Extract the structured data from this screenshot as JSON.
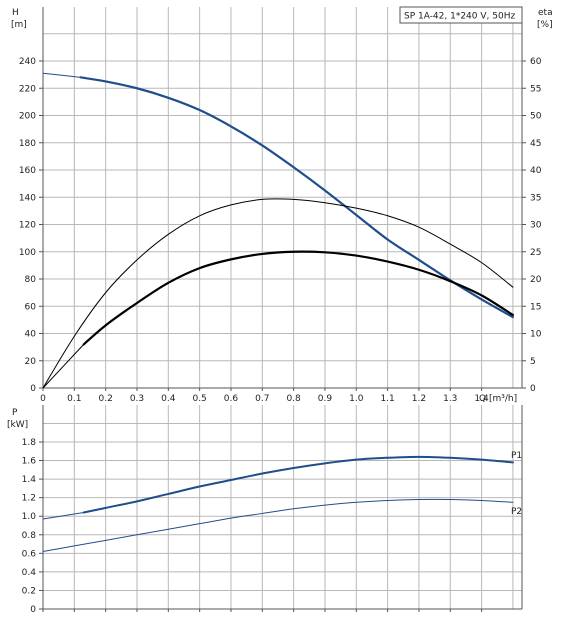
{
  "colors": {
    "grid": "#b8b8b8",
    "axis": "#555555",
    "head_curve": "#1f4e8c",
    "power_curve": "#1f4e8c",
    "eta_curve": "#000000",
    "text": "#222222"
  },
  "chart_data": [
    {
      "id": "head-efficiency",
      "type": "line",
      "title": "SP 1A-42, 1*240 V, 50Hz",
      "xlabel": "Q [m³/h]",
      "ylabel_left_lines": [
        "H",
        "[m]"
      ],
      "ylabel_right_lines": [
        "eta",
        "[%]"
      ],
      "xlim": [
        0,
        1.55
      ],
      "ylim_left": [
        0,
        240
      ],
      "ylim_right": [
        0,
        60
      ],
      "xticks": [
        0,
        0.1,
        0.2,
        0.3,
        0.4,
        0.5,
        0.6,
        0.7,
        0.8,
        0.9,
        1.0,
        1.1,
        1.2,
        1.3,
        1.4
      ],
      "xtick_labels": [
        "0",
        "0.1",
        "0.2",
        "0.3",
        "0.4",
        "0.5",
        "0.6",
        "0.7",
        "0.8",
        "0.9",
        "1.0",
        "1.1",
        "1.2",
        "1.3",
        "1.4"
      ],
      "yticks_left": [
        0,
        20,
        40,
        60,
        80,
        100,
        120,
        140,
        160,
        180,
        200,
        220,
        240
      ],
      "yticks_right": [
        0,
        5,
        10,
        15,
        20,
        25,
        30,
        35,
        40,
        45,
        50,
        55,
        60
      ],
      "grid": true,
      "series": [
        {
          "key": "head",
          "axis": "left",
          "color": "#1f4e8c",
          "x": [
            0,
            0.12,
            0.2,
            0.3,
            0.4,
            0.5,
            0.6,
            0.7,
            0.8,
            0.9,
            1.0,
            1.1,
            1.2,
            1.3,
            1.4,
            1.5
          ],
          "y": [
            231,
            228,
            225,
            220,
            213,
            204,
            192,
            178,
            162,
            145,
            127,
            109,
            94,
            79,
            65,
            52
          ],
          "dashed_until": 0.12,
          "width": 2.2
        },
        {
          "key": "eta-thin",
          "axis": "right",
          "color": "#000000",
          "x": [
            0,
            0.1,
            0.2,
            0.3,
            0.4,
            0.5,
            0.6,
            0.7,
            0.8,
            0.9,
            1.0,
            1.1,
            1.2,
            1.3,
            1.4,
            1.5
          ],
          "y": [
            0,
            9.5,
            17.5,
            23.5,
            28.2,
            31.6,
            33.6,
            34.6,
            34.6,
            34.0,
            33.0,
            31.6,
            29.5,
            26.4,
            23.0,
            18.5
          ],
          "width": 1
        },
        {
          "key": "eta-thick",
          "axis": "right",
          "color": "#000000",
          "x": [
            0,
            0.13,
            0.2,
            0.3,
            0.4,
            0.5,
            0.6,
            0.7,
            0.8,
            0.9,
            1.0,
            1.1,
            1.2,
            1.3,
            1.4,
            1.5
          ],
          "y": [
            0,
            8,
            11.5,
            15.6,
            19.3,
            22.0,
            23.6,
            24.6,
            25.0,
            24.9,
            24.3,
            23.2,
            21.7,
            19.6,
            17.0,
            13.4
          ],
          "dashed_until": 0.13,
          "width": 2.2
        }
      ]
    },
    {
      "id": "power",
      "type": "line",
      "ylabel_lines": [
        "P",
        "[kW]"
      ],
      "xlim": [
        0,
        1.55
      ],
      "ylim": [
        0,
        2.0
      ],
      "yticks": [
        0,
        0.2,
        0.4,
        0.6,
        0.8,
        1.0,
        1.2,
        1.4,
        1.6,
        1.8
      ],
      "ytick_labels": [
        "0",
        "0.2",
        "0.4",
        "0.6",
        "0.8",
        "1.0",
        "1.2",
        "1.4",
        "1.6",
        "1.8"
      ],
      "xticks": [
        0,
        0.1,
        0.2,
        0.3,
        0.4,
        0.5,
        0.6,
        0.7,
        0.8,
        0.9,
        1.0,
        1.1,
        1.2,
        1.3,
        1.4
      ],
      "grid": true,
      "series": [
        {
          "name": "P1",
          "color": "#1f4e8c",
          "x": [
            0,
            0.13,
            0.2,
            0.3,
            0.4,
            0.5,
            0.6,
            0.7,
            0.8,
            0.9,
            1.0,
            1.1,
            1.2,
            1.3,
            1.4,
            1.5
          ],
          "y": [
            0.97,
            1.04,
            1.09,
            1.16,
            1.24,
            1.32,
            1.39,
            1.46,
            1.52,
            1.57,
            1.61,
            1.63,
            1.64,
            1.63,
            1.61,
            1.58
          ],
          "dashed_until": 0.13,
          "width": 2
        },
        {
          "name": "P2",
          "color": "#1f4e8c",
          "x": [
            0,
            0.1,
            0.2,
            0.3,
            0.4,
            0.5,
            0.6,
            0.7,
            0.8,
            0.9,
            1.0,
            1.1,
            1.2,
            1.3,
            1.4,
            1.5
          ],
          "y": [
            0.62,
            0.68,
            0.74,
            0.8,
            0.86,
            0.92,
            0.98,
            1.03,
            1.08,
            1.12,
            1.15,
            1.17,
            1.18,
            1.18,
            1.17,
            1.15
          ],
          "width": 1
        }
      ]
    }
  ]
}
